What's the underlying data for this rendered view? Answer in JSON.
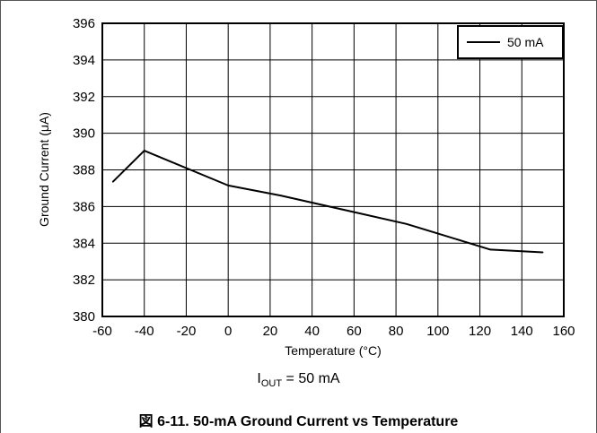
{
  "chart_data": {
    "type": "line",
    "xlabel": "Temperature (°C)",
    "ylabel": "Ground Current (μA)",
    "xlim": [
      -60,
      160
    ],
    "ylim": [
      380,
      396
    ],
    "x_ticks": [
      -60,
      -40,
      -20,
      0,
      20,
      40,
      60,
      80,
      100,
      120,
      140,
      160
    ],
    "y_ticks": [
      380,
      382,
      384,
      386,
      388,
      390,
      392,
      394,
      396
    ],
    "grid": true,
    "legend_position": "top-right",
    "series": [
      {
        "name": "50 mA",
        "color": "#000000",
        "x": [
          -55,
          -40,
          0,
          25,
          85,
          125,
          150
        ],
        "y": [
          387.35,
          389.05,
          387.15,
          386.6,
          385.05,
          383.65,
          383.5
        ]
      }
    ]
  },
  "annotation": {
    "condition_prefix": "I",
    "condition_sub": "OUT",
    "condition_suffix": " = 50 mA"
  },
  "caption": "図 6-11. 50-mA Ground Current vs Temperature"
}
